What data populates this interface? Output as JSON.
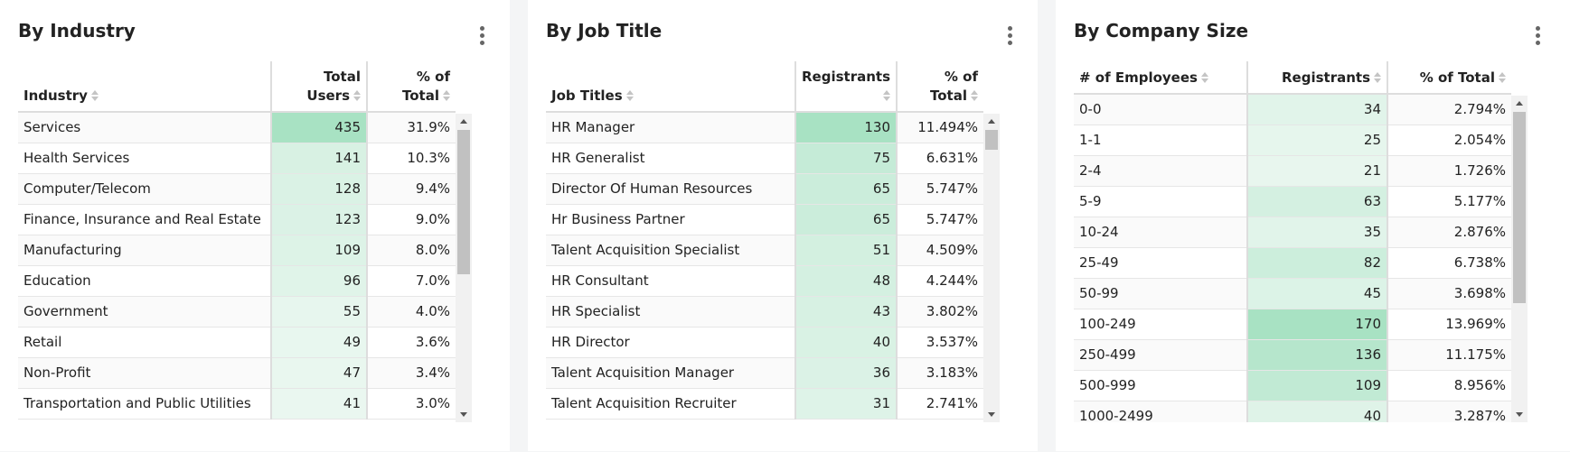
{
  "panels": {
    "industry": {
      "title": "By Industry",
      "headers": {
        "c1": "Industry",
        "c2_line1": "Total",
        "c2_line2": "Users",
        "c3_line1": "% of",
        "c3_line2": "Total"
      },
      "rows": [
        {
          "label": "Services",
          "value": 435,
          "pct": "31.9%"
        },
        {
          "label": "Health Services",
          "value": 141,
          "pct": "10.3%"
        },
        {
          "label": "Computer/Telecom",
          "value": 128,
          "pct": "9.4%"
        },
        {
          "label": "Finance, Insurance and Real Estate",
          "value": 123,
          "pct": "9.0%"
        },
        {
          "label": "Manufacturing",
          "value": 109,
          "pct": "8.0%"
        },
        {
          "label": "Education",
          "value": 96,
          "pct": "7.0%"
        },
        {
          "label": "Government",
          "value": 55,
          "pct": "4.0%"
        },
        {
          "label": "Retail",
          "value": 49,
          "pct": "3.6%"
        },
        {
          "label": "Non-Profit",
          "value": 47,
          "pct": "3.4%"
        },
        {
          "label": "Transportation and Public Utilities",
          "value": 41,
          "pct": "3.0%"
        }
      ]
    },
    "job": {
      "title": "By Job Title",
      "headers": {
        "c1": "Job Titles",
        "c2_line1": "",
        "c2_line2": "Registrants",
        "c3_line1": "% of",
        "c3_line2": "Total"
      },
      "rows": [
        {
          "label": "HR Manager",
          "value": 130,
          "pct": "11.494%"
        },
        {
          "label": "HR Generalist",
          "value": 75,
          "pct": "6.631%"
        },
        {
          "label": "Director Of Human Resources",
          "value": 65,
          "pct": "5.747%"
        },
        {
          "label": "Hr Business Partner",
          "value": 65,
          "pct": "5.747%"
        },
        {
          "label": "Talent Acquisition Specialist",
          "value": 51,
          "pct": "4.509%"
        },
        {
          "label": "HR Consultant",
          "value": 48,
          "pct": "4.244%"
        },
        {
          "label": "HR Specialist",
          "value": 43,
          "pct": "3.802%"
        },
        {
          "label": "HR Director",
          "value": 40,
          "pct": "3.537%"
        },
        {
          "label": "Talent Acquisition Manager",
          "value": 36,
          "pct": "3.183%"
        },
        {
          "label": "Talent Acquisition Recruiter",
          "value": 31,
          "pct": "2.741%"
        }
      ]
    },
    "size": {
      "title": "By Company Size",
      "headers": {
        "c1": "# of Employees",
        "c2_line1": "",
        "c2_line2": "Registrants",
        "c3_line1": "",
        "c3_line2": "% of Total"
      },
      "rows": [
        {
          "label": "0-0",
          "value": 34,
          "pct": "2.794%"
        },
        {
          "label": "1-1",
          "value": 25,
          "pct": "2.054%"
        },
        {
          "label": "2-4",
          "value": 21,
          "pct": "1.726%"
        },
        {
          "label": "5-9",
          "value": 63,
          "pct": "5.177%"
        },
        {
          "label": "10-24",
          "value": 35,
          "pct": "2.876%"
        },
        {
          "label": "25-49",
          "value": 82,
          "pct": "6.738%"
        },
        {
          "label": "50-99",
          "value": 45,
          "pct": "3.698%"
        },
        {
          "label": "100-249",
          "value": 170,
          "pct": "13.969%"
        },
        {
          "label": "250-499",
          "value": 136,
          "pct": "11.175%"
        },
        {
          "label": "500-999",
          "value": 109,
          "pct": "8.956%"
        },
        {
          "label": "1000-2499",
          "value": 40,
          "pct": "3.287%"
        }
      ]
    }
  },
  "colors": {
    "heat_max": "#a8e2c3",
    "heat_min": "#f3faf6",
    "grid": "#dddddd"
  },
  "icons": {
    "menu": "kebab-menu-icon",
    "sort": "sort-icon",
    "scroll_up": "arrow-up-icon",
    "scroll_down": "arrow-down-icon"
  },
  "scroll": {
    "industry": {
      "position_fraction": 0.0,
      "visible_fraction": 0.55
    },
    "job": {
      "position_fraction": 0.0,
      "visible_fraction": 0.08
    },
    "size": {
      "position_fraction": 0.0,
      "visible_fraction": 0.65
    }
  }
}
